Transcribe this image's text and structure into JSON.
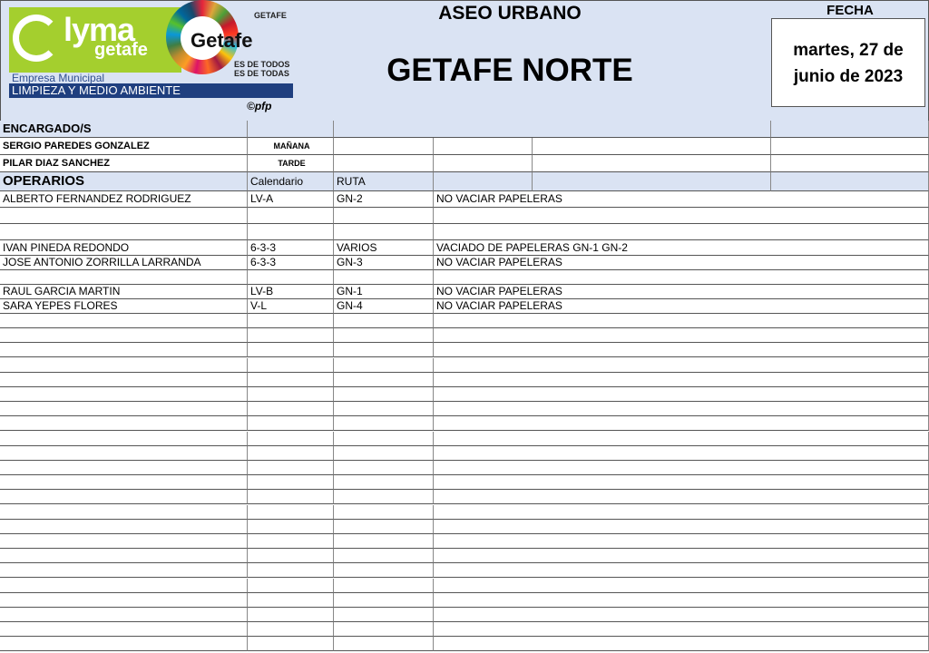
{
  "header": {
    "logo": {
      "brand": "lyma",
      "brand_sub": "getafe",
      "company": "Empresa Municipal",
      "band": "LIMPIEZA Y MEDIO AMBIENTE",
      "ods_text": "Getafe",
      "ayuntamiento": "GETAFE",
      "slogan_1": "ES DE TODOS",
      "slogan_2": "ES DE TODAS"
    },
    "copyright": "©pfp",
    "title": "ASEO URBANO",
    "zone": "GETAFE NORTE",
    "fecha_label": "FECHA",
    "fecha_line1": "martes, 27 de",
    "fecha_line2": "junio de 2023"
  },
  "encargados": {
    "label": "ENCARGADO/S",
    "rows": [
      {
        "name": "SERGIO PAREDES GONZALEZ",
        "turno": "MAÑANA"
      },
      {
        "name": "PILAR DIAZ SANCHEZ",
        "turno": "TARDE"
      }
    ]
  },
  "operarios": {
    "label": "OPERARIOS",
    "col_calendario": "Calendario",
    "col_ruta": "RUTA",
    "rows": [
      {
        "name": "ALBERTO FERNANDEZ RODRIGUEZ",
        "calendario": "LV-A",
        "ruta": "GN-2",
        "obs": "NO VACIAR PAPELERAS"
      },
      {
        "name": "",
        "calendario": "",
        "ruta": "",
        "obs": ""
      },
      {
        "name": "",
        "calendario": "",
        "ruta": "",
        "obs": ""
      },
      {
        "name": "IVAN PINEDA REDONDO",
        "calendario": "6-3-3",
        "ruta": "VARIOS",
        "obs": "VACIADO DE PAPELERAS GN-1 GN-2"
      },
      {
        "name": "JOSE ANTONIO ZORRILLA LARRANDA",
        "calendario": "6-3-3",
        "ruta": "GN-3",
        "obs": "NO VACIAR PAPELERAS"
      },
      {
        "name": "",
        "calendario": "",
        "ruta": "",
        "obs": ""
      },
      {
        "name": "RAUL GARCIA MARTIN",
        "calendario": "LV-B",
        "ruta": "GN-1",
        "obs": "NO VACIAR PAPELERAS"
      },
      {
        "name": "SARA YEPES FLORES",
        "calendario": "V-L",
        "ruta": "GN-4",
        "obs": "NO VACIAR PAPELERAS"
      }
    ]
  },
  "colors": {
    "header_bg": "#dae3f3",
    "brand_green": "#a4cf2e",
    "brand_blue": "#1f3f7f"
  }
}
